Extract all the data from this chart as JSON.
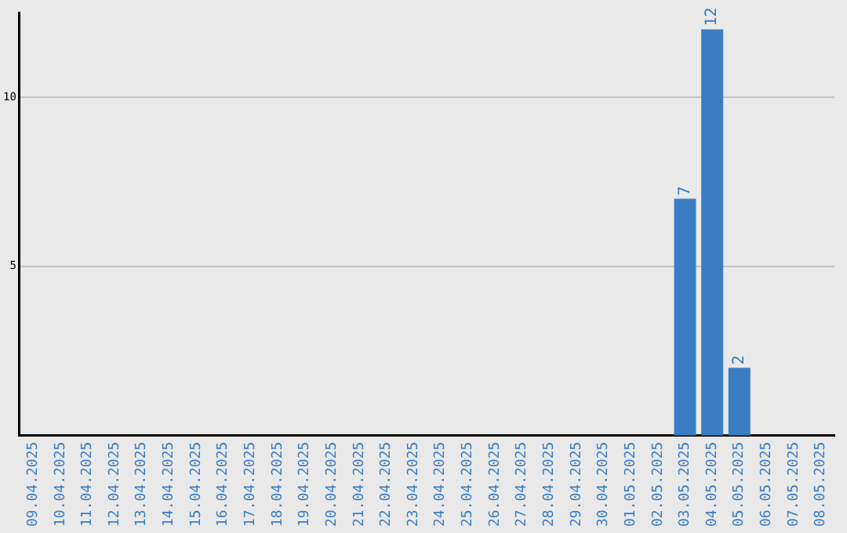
{
  "chart_data": {
    "type": "bar",
    "categories": [
      "09.04.2025",
      "10.04.2025",
      "11.04.2025",
      "12.04.2025",
      "13.04.2025",
      "14.04.2025",
      "15.04.2025",
      "16.04.2025",
      "17.04.2025",
      "18.04.2025",
      "19.04.2025",
      "20.04.2025",
      "21.04.2025",
      "22.04.2025",
      "23.04.2025",
      "24.04.2025",
      "25.04.2025",
      "26.04.2025",
      "27.04.2025",
      "28.04.2025",
      "29.04.2025",
      "30.04.2025",
      "01.05.2025",
      "02.05.2025",
      "03.05.2025",
      "04.05.2025",
      "05.05.2025",
      "06.05.2025",
      "07.05.2025",
      "08.05.2025"
    ],
    "values": [
      0,
      0,
      0,
      0,
      0,
      0,
      0,
      0,
      0,
      0,
      0,
      0,
      0,
      0,
      0,
      0,
      0,
      0,
      0,
      0,
      0,
      0,
      0,
      0,
      7,
      12,
      2,
      0,
      0,
      0
    ],
    "value_labels": [
      null,
      null,
      null,
      null,
      null,
      null,
      null,
      null,
      null,
      null,
      null,
      null,
      null,
      null,
      null,
      null,
      null,
      null,
      null,
      null,
      null,
      null,
      null,
      null,
      "7",
      "12",
      "2",
      null,
      null,
      null
    ],
    "color": "#3a7dc3",
    "ylim": [
      0,
      12.5
    ],
    "yticks": [
      5,
      10
    ],
    "grid": "y",
    "legend": false
  }
}
